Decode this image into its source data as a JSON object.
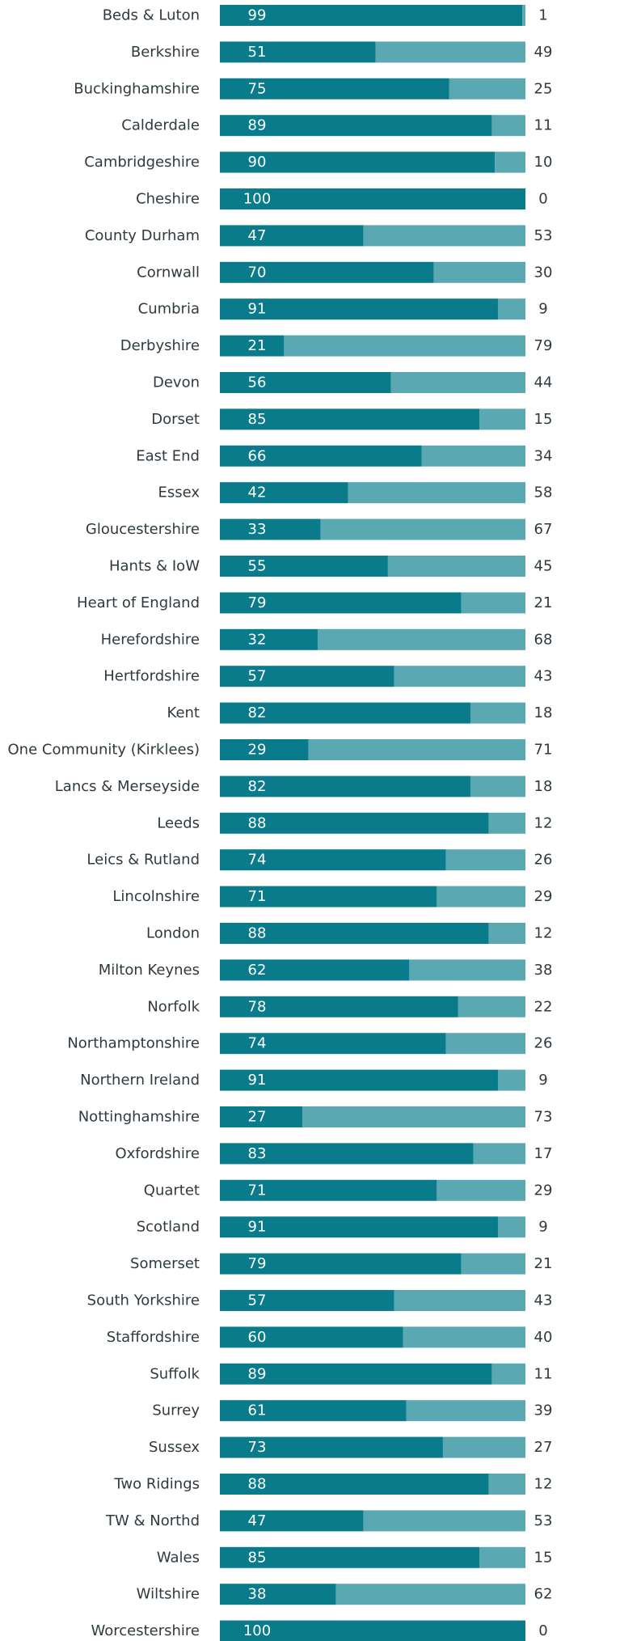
{
  "colors": {
    "primary": "#0a7b8a",
    "secondary": "#5aa8b2",
    "text": "#2f3a40"
  },
  "chart_data": {
    "type": "bar",
    "orientation": "horizontal",
    "stacked": true,
    "categories": [
      "Beds & Luton",
      "Berkshire",
      "Buckinghamshire",
      "Calderdale",
      "Cambridgeshire",
      "Cheshire",
      "County Durham",
      "Cornwall",
      "Cumbria",
      "Derbyshire",
      "Devon",
      "Dorset",
      "East End",
      "Essex",
      "Gloucestershire",
      "Hants & IoW",
      "Heart of England",
      "Herefordshire",
      "Hertfordshire",
      "Kent",
      "One Community (Kirklees)",
      "Lancs & Merseyside",
      "Leeds",
      "Leics & Rutland",
      "Lincolnshire",
      "London",
      "Milton Keynes",
      "Norfolk",
      "Northamptonshire",
      "Northern Ireland",
      "Nottinghamshire",
      "Oxfordshire",
      "Quartet",
      "Scotland",
      "Somerset",
      "South Yorkshire",
      "Staffordshire",
      "Suffolk",
      "Surrey",
      "Sussex",
      "Two Ridings",
      "TW & Northd",
      "Wales",
      "Wiltshire",
      "Worcestershire"
    ],
    "series": [
      {
        "values": [
          99,
          51,
          75,
          89,
          90,
          100,
          47,
          70,
          91,
          21,
          56,
          85,
          66,
          42,
          33,
          55,
          79,
          32,
          57,
          82,
          29,
          82,
          88,
          74,
          71,
          88,
          62,
          78,
          74,
          91,
          27,
          83,
          71,
          91,
          79,
          57,
          60,
          89,
          61,
          73,
          88,
          47,
          85,
          38,
          100
        ]
      },
      {
        "values": [
          1,
          49,
          25,
          11,
          10,
          0,
          53,
          30,
          9,
          79,
          44,
          15,
          34,
          58,
          67,
          45,
          21,
          68,
          43,
          18,
          71,
          18,
          12,
          26,
          29,
          12,
          38,
          22,
          26,
          9,
          73,
          17,
          29,
          9,
          21,
          43,
          40,
          11,
          39,
          27,
          12,
          53,
          15,
          62,
          0
        ]
      }
    ],
    "xlim": [
      0,
      100
    ],
    "grid": false,
    "legend": "none"
  }
}
